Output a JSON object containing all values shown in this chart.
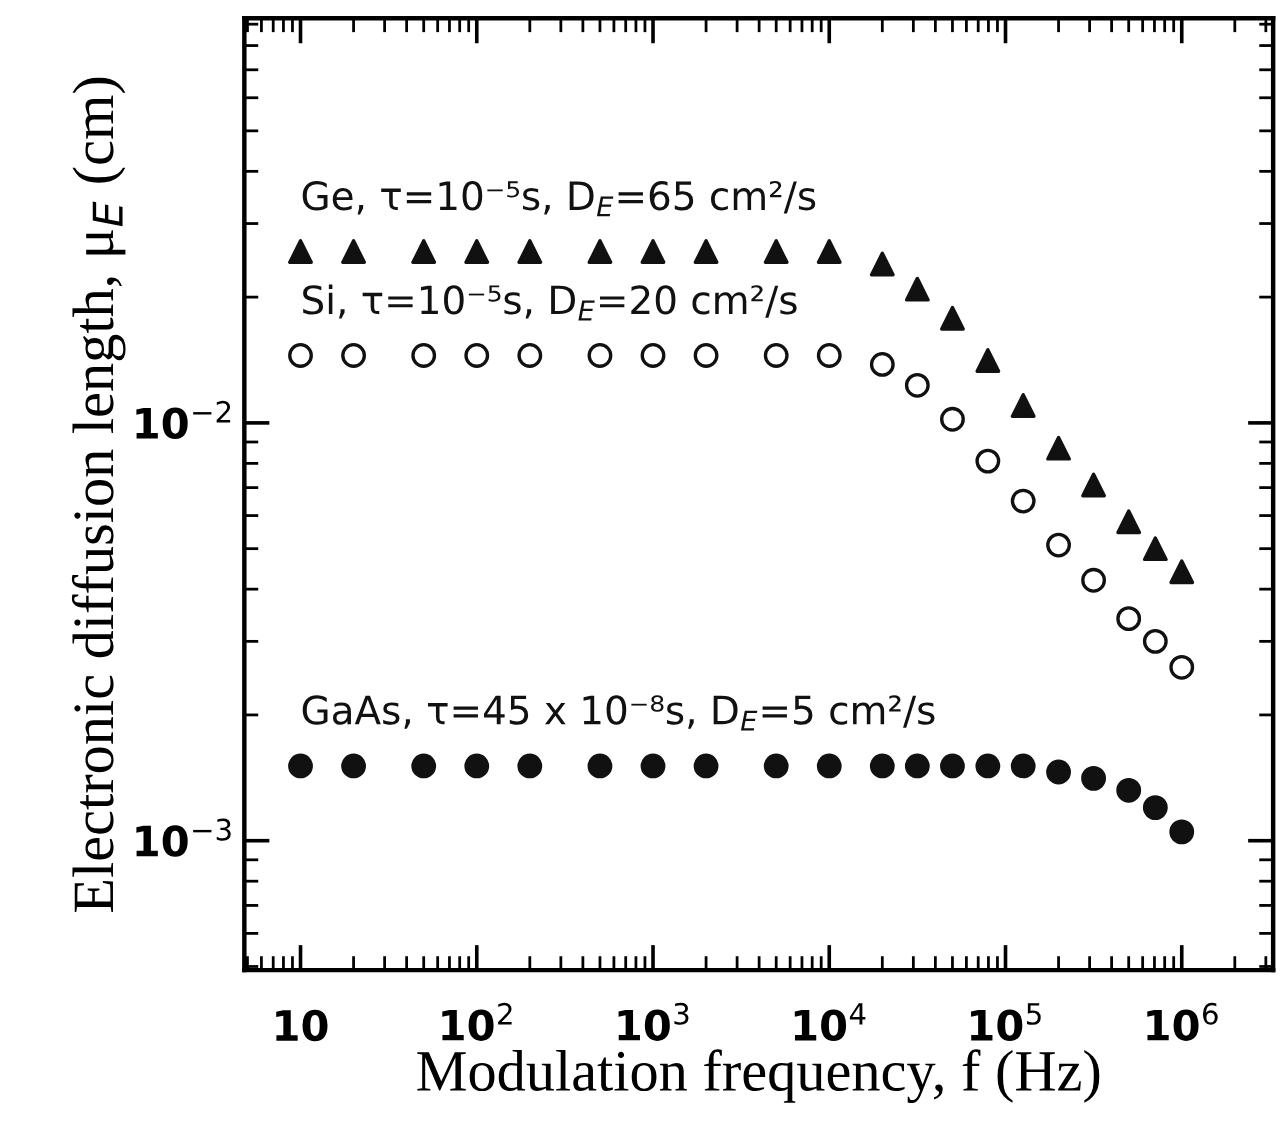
{
  "chart_data": {
    "type": "scatter",
    "xlabel": "Modulation frequency, f (Hz)",
    "ylabel": "Electronic diffusion length, μ$_{E}$ (cm)",
    "log": "xy",
    "xlim": [
      4.8,
      3300000
    ],
    "ylim": [
      0.00049,
      0.093
    ],
    "xticks": [
      10,
      {
        "value": 100,
        "label": "10$^{2}$"
      },
      {
        "value": 1000,
        "label": "10$^{3}$"
      },
      {
        "value": 10000,
        "label": "10$^{4}$"
      },
      {
        "value": 100000,
        "label": "10$^{5}$"
      },
      {
        "value": 1000000,
        "label": "10$^{6}$"
      }
    ],
    "yticks": [
      {
        "value": 0.001,
        "label": "10$^{−3}$"
      },
      {
        "value": 0.01,
        "label": "10$^{−2}$"
      }
    ],
    "grid": false,
    "legend": false,
    "x": [
      10,
      20,
      50,
      100,
      200,
      500,
      1000,
      2000,
      5000,
      10000,
      20000,
      31600,
      50000,
      79400,
      126000,
      200000,
      316000,
      500000,
      708000,
      1000000
    ],
    "series": [
      {
        "name": "Ge, τ=10⁻⁵s, D$_{E}$=65 cm²/s",
        "color": "#111111",
        "marker": "triangle",
        "values": [
          0.0257,
          0.0257,
          0.0257,
          0.0257,
          0.0257,
          0.0257,
          0.0257,
          0.0257,
          0.0257,
          0.0257,
          0.024,
          0.0209,
          0.0178,
          0.0141,
          0.011,
          0.0087,
          0.0071,
          0.0058,
          0.005,
          0.0044
        ]
      },
      {
        "name": "Si, τ=10⁻⁵s, D$_{E}$=20 cm²/s",
        "color": "#111111",
        "marker": "circle",
        "values": [
          0.0145,
          0.0145,
          0.0145,
          0.0145,
          0.0145,
          0.0145,
          0.0145,
          0.0145,
          0.0145,
          0.0145,
          0.0138,
          0.0123,
          0.0102,
          0.0081,
          0.0065,
          0.0051,
          0.0042,
          0.0034,
          0.003,
          0.0026
        ]
      },
      {
        "name": "GaAs, τ=45 x 10⁻⁸s, D$_{E}$=5 cm²/s",
        "color": "#111111",
        "marker": "circle",
        "values": [
          0.00151,
          0.00151,
          0.00151,
          0.00151,
          0.00151,
          0.00151,
          0.00151,
          0.00151,
          0.00151,
          0.00151,
          0.00151,
          0.00151,
          0.00151,
          0.00151,
          0.00151,
          0.00146,
          0.00141,
          0.00132,
          0.0012,
          0.00105
        ]
      }
    ]
  }
}
